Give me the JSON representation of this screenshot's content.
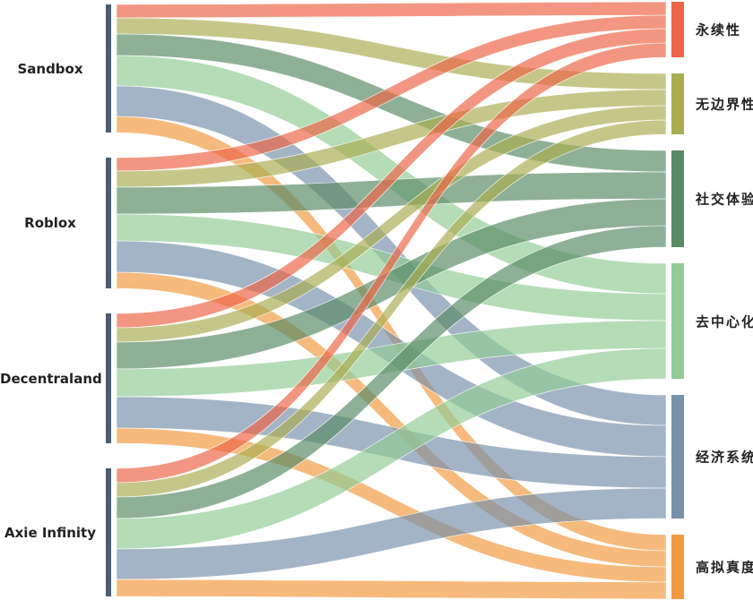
{
  "sources": [
    {
      "name": "Sandbox",
      "values": [
        15,
        18,
        24,
        34,
        34,
        18
      ]
    },
    {
      "name": "Roblox",
      "values": [
        15,
        18,
        30,
        30,
        35,
        18
      ]
    },
    {
      "name": "Decentraland",
      "values": [
        16,
        16,
        30,
        31,
        35,
        17
      ]
    },
    {
      "name": "Axie Infinity",
      "values": [
        16,
        16,
        24,
        34,
        34,
        19
      ]
    }
  ],
  "targets": [
    {
      "name": "永续性",
      "color": "#ee6446"
    },
    {
      "name": "无边界性",
      "color": "#a9ad4f"
    },
    {
      "name": "社交体验",
      "color": "#588a66"
    },
    {
      "name": "去中心化",
      "color": "#90cc95"
    },
    {
      "name": "经济系统",
      "color": "#7891ab"
    },
    {
      "name": "高拟真度",
      "color": "#f29a3e"
    }
  ],
  "source_node_color": "#4f5b70"
}
